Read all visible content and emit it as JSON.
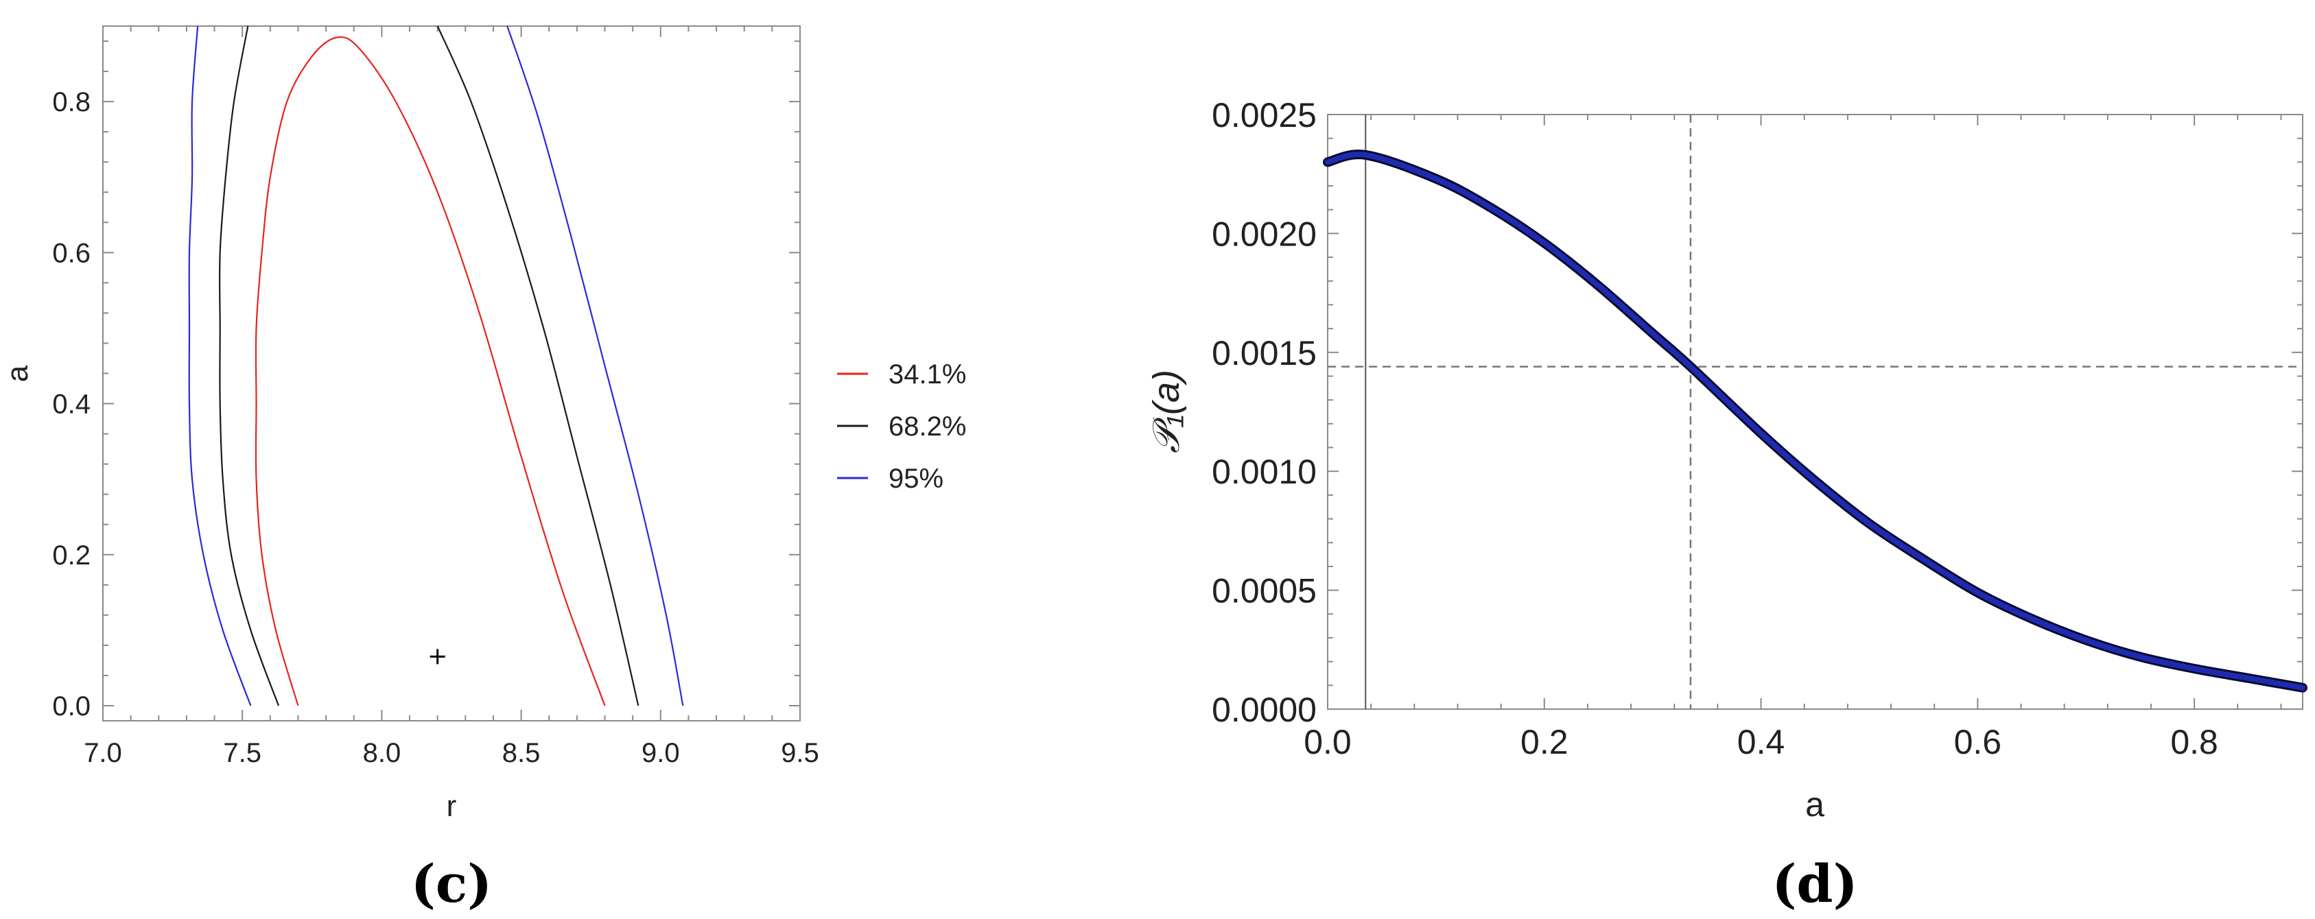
{
  "chart_data": [
    {
      "panel": "(c)",
      "type": "contour",
      "xlabel": "r",
      "ylabel": "a",
      "xlim": [
        7.0,
        9.5
      ],
      "ylim": [
        -0.02,
        0.9
      ],
      "xticks": [
        "7.0",
        "7.5",
        "8.0",
        "8.5",
        "9.0",
        "9.5"
      ],
      "yticks": [
        "0.0",
        "0.2",
        "0.4",
        "0.6",
        "0.8"
      ],
      "best_fit": {
        "r": 8.2,
        "a": 0.065
      },
      "legend_position": "right",
      "series": [
        {
          "name": "34.1%",
          "color": "#e8231e",
          "points": [
            [
              7.7,
              0.0
            ],
            [
              7.62,
              0.1
            ],
            [
              7.57,
              0.2
            ],
            [
              7.55,
              0.3
            ],
            [
              7.55,
              0.4
            ],
            [
              7.55,
              0.5
            ],
            [
              7.57,
              0.6
            ],
            [
              7.6,
              0.7
            ],
            [
              7.66,
              0.8
            ],
            [
              7.75,
              0.86
            ],
            [
              7.84,
              0.885
            ],
            [
              7.92,
              0.87
            ],
            [
              8.05,
              0.8
            ],
            [
              8.2,
              0.68
            ],
            [
              8.35,
              0.52
            ],
            [
              8.5,
              0.33
            ],
            [
              8.65,
              0.15
            ],
            [
              8.8,
              0.0
            ]
          ]
        },
        {
          "name": "68.2%",
          "color": "#1a1a1a",
          "points": [
            [
              7.63,
              0.0
            ],
            [
              7.53,
              0.1
            ],
            [
              7.46,
              0.2
            ],
            [
              7.43,
              0.3
            ],
            [
              7.42,
              0.4
            ],
            [
              7.42,
              0.5
            ],
            [
              7.42,
              0.6
            ],
            [
              7.44,
              0.7
            ],
            [
              7.47,
              0.8
            ],
            [
              7.52,
              0.9
            ],
            [
              8.2,
              0.9
            ],
            [
              8.32,
              0.8
            ],
            [
              8.45,
              0.66
            ],
            [
              8.58,
              0.5
            ],
            [
              8.7,
              0.33
            ],
            [
              8.82,
              0.16
            ],
            [
              8.92,
              0.0
            ]
          ]
        },
        {
          "name": "95%",
          "color": "#2a2ad8",
          "points": [
            [
              7.53,
              0.0
            ],
            [
              7.43,
              0.1
            ],
            [
              7.36,
              0.2
            ],
            [
              7.32,
              0.3
            ],
            [
              7.31,
              0.4
            ],
            [
              7.31,
              0.5
            ],
            [
              7.31,
              0.6
            ],
            [
              7.32,
              0.7
            ],
            [
              7.32,
              0.8
            ],
            [
              7.34,
              0.9
            ],
            [
              8.45,
              0.9
            ],
            [
              8.56,
              0.78
            ],
            [
              8.68,
              0.62
            ],
            [
              8.8,
              0.45
            ],
            [
              8.92,
              0.28
            ],
            [
              9.02,
              0.12
            ],
            [
              9.08,
              0.0
            ]
          ]
        }
      ]
    },
    {
      "panel": "(d)",
      "type": "line",
      "xlabel": "a",
      "ylabel": "𝒫₁(a)",
      "xlim": [
        0.0,
        0.9
      ],
      "ylim": [
        0.0,
        0.0025
      ],
      "xticks": [
        "0.0",
        "0.2",
        "0.4",
        "0.6",
        "0.8"
      ],
      "yticks": [
        "0.0000",
        "0.0005",
        "0.0010",
        "0.0015",
        "0.0020",
        "0.0025"
      ],
      "vline_solid": 0.035,
      "vline_dashed": 0.335,
      "hline_dashed": 0.00144,
      "series": [
        {
          "color": "#1e2bb0",
          "x": [
            0.0,
            0.035,
            0.1,
            0.15,
            0.2,
            0.25,
            0.3,
            0.335,
            0.4,
            0.45,
            0.5,
            0.55,
            0.6,
            0.65,
            0.7,
            0.75,
            0.8,
            0.85,
            0.9
          ],
          "y": [
            0.0023,
            0.00233,
            0.00223,
            0.00211,
            0.00196,
            0.00178,
            0.00158,
            0.00144,
            0.00116,
            0.00096,
            0.00078,
            0.00063,
            0.00049,
            0.00038,
            0.00029,
            0.00022,
            0.00017,
            0.00013,
            9e-05
          ]
        }
      ]
    }
  ]
}
